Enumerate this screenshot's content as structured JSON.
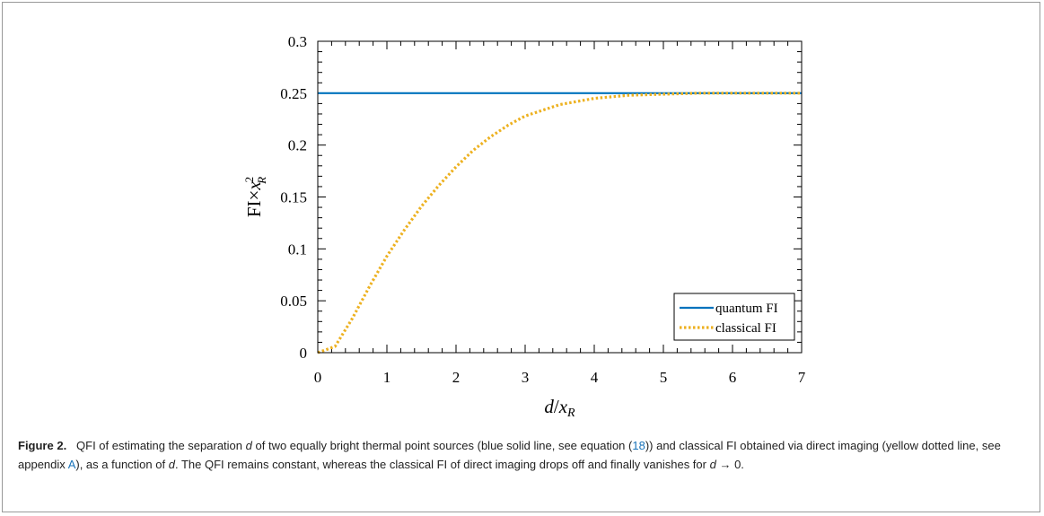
{
  "chart_data": {
    "type": "line",
    "title": "",
    "xlabel": "d/x_R",
    "ylabel": "FI×x_R^2",
    "xlim": [
      0,
      7
    ],
    "ylim": [
      0,
      0.3
    ],
    "xticks": [
      0,
      1,
      2,
      3,
      4,
      5,
      6,
      7
    ],
    "xtick_labels": [
      "0",
      "1",
      "2",
      "3",
      "4",
      "5",
      "6",
      "7"
    ],
    "yticks": [
      0,
      0.05,
      0.1,
      0.15,
      0.2,
      0.25,
      0.3
    ],
    "ytick_labels": [
      "0",
      "0.05",
      "0.1",
      "0.15",
      "0.2",
      "0.25",
      "0.3"
    ],
    "grid": false,
    "legend_position": "bottom-right",
    "series": [
      {
        "name": "quantum FI",
        "style": "solid",
        "color": "#0072BD",
        "x": [
          0,
          7
        ],
        "y": [
          0.25,
          0.25
        ]
      },
      {
        "name": "classical FI",
        "style": "dotted",
        "color": "#EDB120",
        "x": [
          0,
          0.25,
          0.5,
          0.75,
          1.0,
          1.25,
          1.5,
          1.75,
          2.0,
          2.25,
          2.5,
          2.75,
          3.0,
          3.5,
          4.0,
          4.5,
          5.0,
          5.5,
          6.0,
          6.5,
          7.0
        ],
        "y": [
          0,
          0.006,
          0.033,
          0.064,
          0.093,
          0.118,
          0.141,
          0.161,
          0.179,
          0.195,
          0.208,
          0.219,
          0.228,
          0.239,
          0.245,
          0.248,
          0.249,
          0.25,
          0.25,
          0.25,
          0.25
        ]
      }
    ]
  },
  "caption": {
    "label": "Figure 2.",
    "part1": "QFI of estimating the separation",
    "var_d": "d",
    "part2": "of two equally bright thermal point sources (blue solid line, see equation (",
    "ref_eq": "18",
    "part3": ")) and classical FI obtained via direct imaging (yellow dotted line, see appendix",
    "ref_app": "A",
    "part4": "), as a function of",
    "var_d2": "d",
    "part5": ". The QFI remains constant, whereas the classical FI of direct imaging drops off and finally vanishes for",
    "var_d3": "d",
    "part6": "→ 0."
  }
}
